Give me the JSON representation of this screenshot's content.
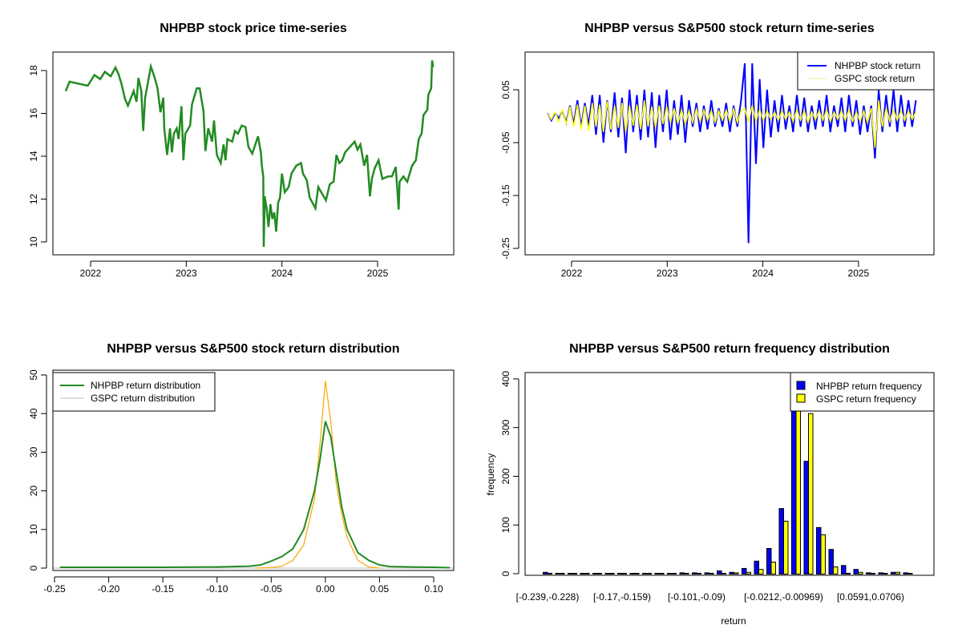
{
  "chart_data": [
    {
      "type": "line",
      "title": "NHPBP stock price time-series",
      "xlabel": "",
      "ylabel": "",
      "xlim": [
        2021.606,
        2025.796
      ],
      "ylim": [
        9.4,
        18.86
      ],
      "xticks": [
        2022,
        2023,
        2024,
        2025
      ],
      "xtick_labels": [
        "2022",
        "2023",
        "2024",
        "2025"
      ],
      "yticks": [
        10,
        12,
        14,
        16,
        18
      ],
      "ytick_labels": [
        "10",
        "12",
        "14",
        "16",
        "18"
      ],
      "color": "#228B22",
      "series": [
        {
          "name": "NHPBP",
          "x": [
            2021.74,
            2021.78,
            2021.97,
            2022.04,
            2022.1,
            2022.15,
            2022.21,
            2022.26,
            2022.29,
            2022.32,
            2022.36,
            2022.39,
            2022.45,
            2022.48,
            2022.5,
            2022.53,
            2022.55,
            2022.57,
            2022.63,
            2022.67,
            2022.7,
            2022.73,
            2022.76,
            2022.77,
            2022.8,
            2022.83,
            2022.85,
            2022.87,
            2022.9,
            2022.92,
            2022.95,
            2022.97,
            2022.99,
            2023.04,
            2023.06,
            2023.11,
            2023.14,
            2023.18,
            2023.2,
            2023.23,
            2023.27,
            2023.29,
            2023.32,
            2023.36,
            2023.39,
            2023.41,
            2023.43,
            2023.48,
            2023.51,
            2023.54,
            2023.58,
            2023.62,
            2023.65,
            2023.69,
            2023.75,
            2023.78,
            2023.79,
            2023.805,
            2023.81,
            2023.82,
            2023.84,
            2023.86,
            2023.88,
            2023.9,
            2023.92,
            2023.94,
            2023.96,
            2023.98,
            2024.0,
            2024.03,
            2024.07,
            2024.1,
            2024.15,
            2024.2,
            2024.22,
            2024.26,
            2024.29,
            2024.35,
            2024.38,
            2024.42,
            2024.46,
            2024.5,
            2024.54,
            2024.57,
            2024.6,
            2024.63,
            2024.66,
            2024.71,
            2024.76,
            2024.79,
            2024.82,
            2024.86,
            2024.89,
            2024.92,
            2024.94,
            2024.97,
            2025.01,
            2025.05,
            2025.11,
            2025.15,
            2025.19,
            2025.22,
            2025.23,
            2025.27,
            2025.31,
            2025.36,
            2025.4,
            2025.43,
            2025.46,
            2025.48,
            2025.52,
            2025.53,
            2025.56,
            2025.57,
            2025.58
          ],
          "y": [
            17.04,
            17.48,
            17.29,
            17.79,
            17.6,
            17.94,
            17.73,
            18.14,
            17.85,
            17.42,
            16.67,
            16.36,
            17.04,
            16.54,
            17.66,
            17.04,
            15.18,
            16.73,
            18.19,
            17.66,
            17.17,
            16.05,
            16.73,
            15.3,
            14.06,
            15.3,
            14.18,
            15.05,
            15.3,
            14.8,
            16.33,
            13.81,
            15.05,
            15.43,
            16.42,
            17.17,
            17.17,
            16.11,
            14.24,
            15.3,
            14.68,
            15.67,
            14.06,
            13.68,
            14.55,
            13.81,
            14.8,
            14.68,
            15.18,
            15.05,
            15.43,
            15.36,
            14.43,
            14.12,
            14.93,
            14.18,
            13.56,
            13.06,
            9.77,
            12.13,
            11.57,
            10.7,
            11.76,
            11.07,
            11.38,
            10.48,
            11.82,
            12.07,
            13.19,
            12.32,
            12.56,
            13.19,
            13.56,
            13.68,
            13.19,
            12.88,
            12.07,
            11.57,
            12.56,
            12.25,
            11.94,
            12.69,
            12.81,
            14.06,
            13.68,
            13.81,
            14.18,
            14.43,
            14.68,
            14.31,
            14.55,
            13.56,
            14.06,
            12.13,
            12.94,
            13.44,
            13.81,
            12.94,
            13.06,
            13.06,
            13.5,
            11.51,
            12.81,
            13.06,
            12.81,
            13.56,
            13.81,
            14.8,
            15.05,
            15.92,
            16.17,
            16.86,
            17.17,
            18.47,
            18.16
          ]
        }
      ]
    },
    {
      "type": "line",
      "title": "NHPBP versus S&P500 stock return time-series",
      "xlim": [
        2021.514,
        2025.789
      ],
      "ylim": [
        -0.2621,
        0.1212
      ],
      "xticks": [
        2022,
        2023,
        2024,
        2025
      ],
      "xtick_labels": [
        "2022",
        "2023",
        "2024",
        "2025"
      ],
      "yticks": [
        0.05,
        -0.05,
        -0.15,
        -0.25
      ],
      "ytick_labels": [
        "0.05",
        "-0.05",
        "-0.15",
        "-0.25"
      ],
      "x_start": 2021.75,
      "x_end": 2025.6,
      "legend": {
        "position": "top-right",
        "entries": [
          "NHPBP stock return",
          "GSPC stock return"
        ]
      },
      "series": [
        {
          "name": "NHPBP stock return",
          "color": "#0000FF",
          "values": [
            0.005,
            -0.008,
            0.006,
            -0.004,
            0.01,
            -0.012,
            0.02,
            -0.015,
            0.03,
            -0.02,
            0.025,
            -0.018,
            0.04,
            -0.035,
            0.04,
            -0.05,
            0.03,
            -0.03,
            0.045,
            -0.04,
            0.035,
            -0.07,
            0.05,
            -0.03,
            0.04,
            -0.045,
            0.05,
            -0.04,
            0.045,
            -0.06,
            0.04,
            -0.03,
            0.05,
            -0.045,
            0.03,
            -0.035,
            0.04,
            -0.05,
            0.03,
            -0.02,
            0.025,
            -0.03,
            0.02,
            -0.025,
            0.03,
            -0.02,
            0.015,
            -0.02,
            0.025,
            -0.03,
            0.02,
            -0.02,
            0.03,
            0.1,
            -0.24,
            0.1,
            -0.09,
            0.07,
            -0.06,
            0.05,
            -0.04,
            0.03,
            -0.03,
            0.04,
            -0.025,
            0.02,
            -0.03,
            0.04,
            -0.02,
            0.035,
            -0.03,
            0.02,
            -0.025,
            0.03,
            -0.02,
            0.04,
            -0.03,
            0.02,
            -0.02,
            0.035,
            -0.03,
            0.04,
            -0.02,
            0.03,
            -0.035,
            0.02,
            -0.03,
            0.02,
            -0.08,
            0.05,
            -0.03,
            0.04,
            -0.02,
            0.05,
            -0.03,
            0.04,
            -0.02,
            0.03,
            -0.02,
            0.03
          ]
        },
        {
          "name": "GSPC stock return",
          "color": "#FFFF00",
          "values": [
            0.004,
            -0.006,
            0.008,
            -0.01,
            0.012,
            -0.015,
            0.018,
            -0.02,
            0.022,
            -0.025,
            0.02,
            -0.028,
            0.025,
            -0.02,
            0.022,
            -0.03,
            0.028,
            -0.025,
            0.02,
            -0.022,
            0.025,
            -0.03,
            0.02,
            -0.018,
            0.022,
            -0.025,
            0.03,
            -0.02,
            0.018,
            -0.022,
            0.02,
            -0.015,
            0.018,
            -0.012,
            0.015,
            -0.014,
            0.012,
            -0.015,
            0.01,
            -0.012,
            0.014,
            -0.01,
            0.012,
            -0.008,
            0.01,
            -0.012,
            0.01,
            -0.008,
            0.012,
            -0.01,
            0.014,
            -0.012,
            0.01,
            0.015,
            -0.012,
            0.02,
            -0.01,
            0.012,
            -0.008,
            0.01,
            -0.006,
            0.008,
            -0.008,
            0.01,
            -0.006,
            0.008,
            -0.01,
            0.012,
            -0.008,
            0.01,
            -0.012,
            0.008,
            -0.006,
            0.01,
            -0.008,
            0.012,
            -0.01,
            0.008,
            -0.006,
            0.01,
            -0.008,
            0.012,
            -0.01,
            0.008,
            -0.01,
            0.01,
            -0.012,
            0.015,
            -0.06,
            0.03,
            -0.02,
            0.015,
            -0.01,
            0.012,
            -0.008,
            0.01,
            -0.008,
            0.01,
            -0.006,
            0.008
          ]
        }
      ]
    },
    {
      "type": "line",
      "title": "NHPBP versus S&P500 stock return distribution",
      "xlim": [
        -0.2515,
        0.1185
      ],
      "ylim": [
        -0.62,
        51.24
      ],
      "xticks": [
        -0.25,
        -0.2,
        -0.15,
        -0.1,
        -0.05,
        0,
        0.05,
        0.1
      ],
      "xtick_labels": [
        "-0.25",
        "-0.20",
        "-0.15",
        "-0.10",
        "-0.05",
        "0.00",
        "0.05",
        "0.10"
      ],
      "yticks": [
        0,
        10,
        20,
        30,
        40,
        50
      ],
      "ytick_labels": [
        "0",
        "10",
        "20",
        "30",
        "40",
        "50"
      ],
      "legend": {
        "position": "top-left",
        "entries": [
          "NHPBP return distribution",
          "GSPC return distribution"
        ]
      },
      "series": [
        {
          "name": "NHPBP return distribution",
          "color": "#228B22",
          "legend_color": "#228B22",
          "x": [
            -0.245,
            -0.15,
            -0.1,
            -0.07,
            -0.06,
            -0.05,
            -0.04,
            -0.03,
            -0.02,
            -0.01,
            -0.005,
            0,
            0.005,
            0.01,
            0.015,
            0.02,
            0.03,
            0.04,
            0.05,
            0.06,
            0.08,
            0.1,
            0.115
          ],
          "y": [
            0.2,
            0.2,
            0.3,
            0.5,
            0.8,
            1.8,
            3,
            5,
            10,
            20,
            28,
            38,
            34,
            25,
            16,
            10,
            4,
            2,
            0.8,
            0.4,
            0.3,
            0.2,
            0.1
          ]
        },
        {
          "name": "GSPC return distribution",
          "color": "#FFA500",
          "legend_color": "#BEBEBE",
          "x": [
            -0.065,
            -0.05,
            -0.04,
            -0.03,
            -0.02,
            -0.01,
            -0.005,
            0,
            0.005,
            0.01,
            0.015,
            0.02,
            0.03,
            0.04,
            0.05
          ],
          "y": [
            0,
            0.1,
            0.5,
            2,
            6,
            18,
            32,
            48.5,
            38,
            22,
            14,
            8,
            2,
            0.3,
            0
          ]
        }
      ]
    },
    {
      "type": "bar",
      "title": "NHPBP versus S&P500 return frequency distribution",
      "xlabel": "return",
      "ylabel": "frequency",
      "ylim": [
        -3.3,
        413
      ],
      "yticks": [
        0,
        100,
        200,
        300,
        400
      ],
      "ytick_labels": [
        "0",
        "100",
        "200",
        "300",
        "400"
      ],
      "category_labels_shown": [
        {
          "index": 0,
          "label": "[-0.239,-0.228)"
        },
        {
          "index": 6,
          "label": "[-0.17,-0.159)"
        },
        {
          "index": 12,
          "label": "[-0.101,-0.09)"
        },
        {
          "index": 19,
          "label": "[-0.0212,-0.00969)"
        },
        {
          "index": 26,
          "label": "[0.0591,0.0706)"
        }
      ],
      "legend": {
        "position": "top-right",
        "entries": [
          "NHPBP return frequency",
          "GSPC return frequency"
        ]
      },
      "series": [
        {
          "name": "NHPBP return frequency",
          "color": "#0000FF",
          "values": [
            2,
            0,
            0,
            0,
            0,
            0,
            0,
            0,
            0,
            0,
            0,
            1,
            1,
            1,
            5,
            2,
            10,
            25,
            51,
            133,
            430,
            230,
            94,
            49,
            16,
            8,
            1,
            1,
            2,
            1
          ]
        },
        {
          "name": "GSPC return frequency",
          "color": "#FFFF00",
          "values": [
            0,
            0,
            0,
            0,
            0,
            0,
            0,
            0,
            0,
            0,
            0,
            0,
            0,
            0,
            0,
            1,
            2,
            8,
            23,
            107,
            460,
            328,
            79,
            13,
            0,
            2,
            0,
            0,
            2,
            0
          ]
        }
      ]
    }
  ]
}
